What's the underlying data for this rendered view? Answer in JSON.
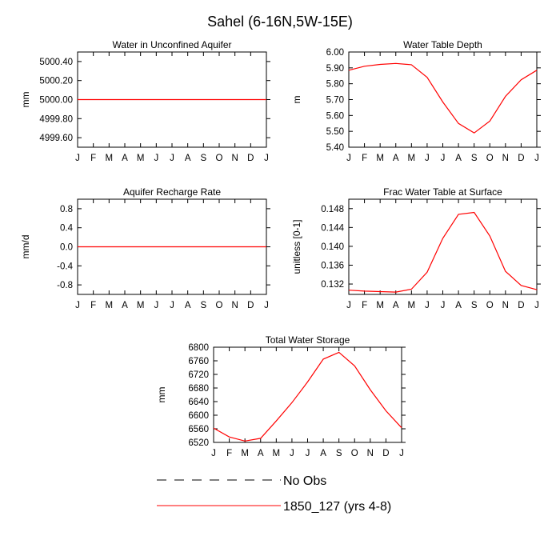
{
  "figure": {
    "title": "Sahel (6-16N,5W-15E)",
    "legend": [
      {
        "label": "No Obs",
        "color": "#000000",
        "dashed": true
      },
      {
        "label": "1850_127 (yrs 4-8)",
        "color": "#ff0000",
        "dashed": false
      }
    ]
  },
  "chart_data": [
    {
      "type": "line",
      "title": "Water in Unconfined Aquifer",
      "ylabel": "mm",
      "x": [
        "J",
        "F",
        "M",
        "A",
        "M",
        "J",
        "J",
        "A",
        "S",
        "O",
        "N",
        "D",
        "J"
      ],
      "ylim": [
        4999.5,
        5000.5
      ],
      "yticks": [
        4999.6,
        4999.8,
        5000.0,
        5000.2,
        5000.4
      ],
      "ytick_labels": [
        "4999.60",
        "4999.80",
        "5000.00",
        "5000.20",
        "5000.40"
      ],
      "series": [
        {
          "name": "1850_127 (yrs 4-8)",
          "color": "#ff0000",
          "values": [
            5000,
            5000,
            5000,
            5000,
            5000,
            5000,
            5000,
            5000,
            5000,
            5000,
            5000,
            5000,
            5000
          ]
        }
      ]
    },
    {
      "type": "line",
      "title": "Water Table Depth",
      "ylabel": "m",
      "x": [
        "J",
        "F",
        "M",
        "A",
        "M",
        "J",
        "J",
        "A",
        "S",
        "O",
        "N",
        "D",
        "J"
      ],
      "ylim": [
        5.4,
        6.0
      ],
      "yticks": [
        5.4,
        5.5,
        5.6,
        5.7,
        5.8,
        5.9,
        6.0
      ],
      "ytick_labels": [
        "5.40",
        "5.50",
        "5.60",
        "5.70",
        "5.80",
        "5.90",
        "6.00"
      ],
      "series": [
        {
          "name": "1850_127 (yrs 4-8)",
          "color": "#ff0000",
          "values": [
            5.885,
            5.91,
            5.922,
            5.928,
            5.92,
            5.84,
            5.685,
            5.55,
            5.49,
            5.565,
            5.72,
            5.825,
            5.885
          ]
        }
      ]
    },
    {
      "type": "line",
      "title": "Aquifer Recharge Rate",
      "ylabel": "mm/d",
      "x": [
        "J",
        "F",
        "M",
        "A",
        "M",
        "J",
        "J",
        "A",
        "S",
        "O",
        "N",
        "D",
        "J"
      ],
      "ylim": [
        -1.0,
        1.0
      ],
      "yticks": [
        -0.8,
        -0.4,
        0.0,
        0.4,
        0.8
      ],
      "ytick_labels": [
        "-0.8",
        "-0.4",
        "0.0",
        "0.4",
        "0.8"
      ],
      "series": [
        {
          "name": "1850_127 (yrs 4-8)",
          "color": "#ff0000",
          "values": [
            0,
            0,
            0,
            0,
            0,
            0,
            0,
            0,
            0,
            0,
            0,
            0,
            0
          ]
        }
      ]
    },
    {
      "type": "line",
      "title": "Frac Water Table at Surface",
      "ylabel": "unitless [0-1]",
      "x": [
        "J",
        "F",
        "M",
        "A",
        "M",
        "J",
        "J",
        "A",
        "S",
        "O",
        "N",
        "D",
        "J"
      ],
      "ylim": [
        0.1298,
        0.15
      ],
      "yticks": [
        0.132,
        0.136,
        0.14,
        0.144,
        0.148
      ],
      "ytick_labels": [
        "0.132",
        "0.136",
        "0.140",
        "0.144",
        "0.148"
      ],
      "series": [
        {
          "name": "1850_127 (yrs 4-8)",
          "color": "#ff0000",
          "values": [
            0.1307,
            0.1305,
            0.1304,
            0.1303,
            0.1309,
            0.1345,
            0.1417,
            0.1468,
            0.1472,
            0.1422,
            0.1347,
            0.1317,
            0.1308
          ]
        }
      ]
    },
    {
      "type": "line",
      "title": "Total Water Storage",
      "ylabel": "mm",
      "x": [
        "J",
        "F",
        "M",
        "A",
        "M",
        "J",
        "J",
        "A",
        "S",
        "O",
        "N",
        "D",
        "J"
      ],
      "ylim": [
        6520,
        6800
      ],
      "yticks": [
        6520,
        6560,
        6600,
        6640,
        6680,
        6720,
        6760,
        6800
      ],
      "ytick_labels": [
        "6520",
        "6560",
        "6600",
        "6640",
        "6680",
        "6720",
        "6760",
        "6800"
      ],
      "series": [
        {
          "name": "1850_127 (yrs 4-8)",
          "color": "#ff0000",
          "values": [
            6562,
            6536,
            6524,
            6532,
            6583,
            6637,
            6698,
            6765,
            6785,
            6745,
            6675,
            6613,
            6563
          ]
        }
      ]
    }
  ]
}
